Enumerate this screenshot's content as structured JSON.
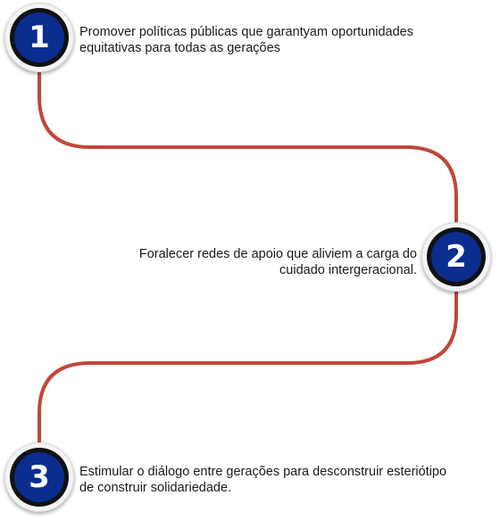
{
  "colors": {
    "connector": "#c0473b",
    "badge_fill": "#0a2d8f",
    "badge_ring": "#111111",
    "badge_outer": "#f4f4f4",
    "number_text": "#ffffff",
    "body_text": "#1a1a1a"
  },
  "steps": [
    {
      "number": "1",
      "text": "Promover políticas públicas que garantyam oportunidades equitativas para todas as gerações"
    },
    {
      "number": "2",
      "text": "Foralecer redes de apoio que aliviem a carga do cuidado intergeracional."
    },
    {
      "number": "3",
      "text": "Estimular o diálogo entre gerações para desconstruir esteriótipo de construir solidariedade."
    }
  ]
}
